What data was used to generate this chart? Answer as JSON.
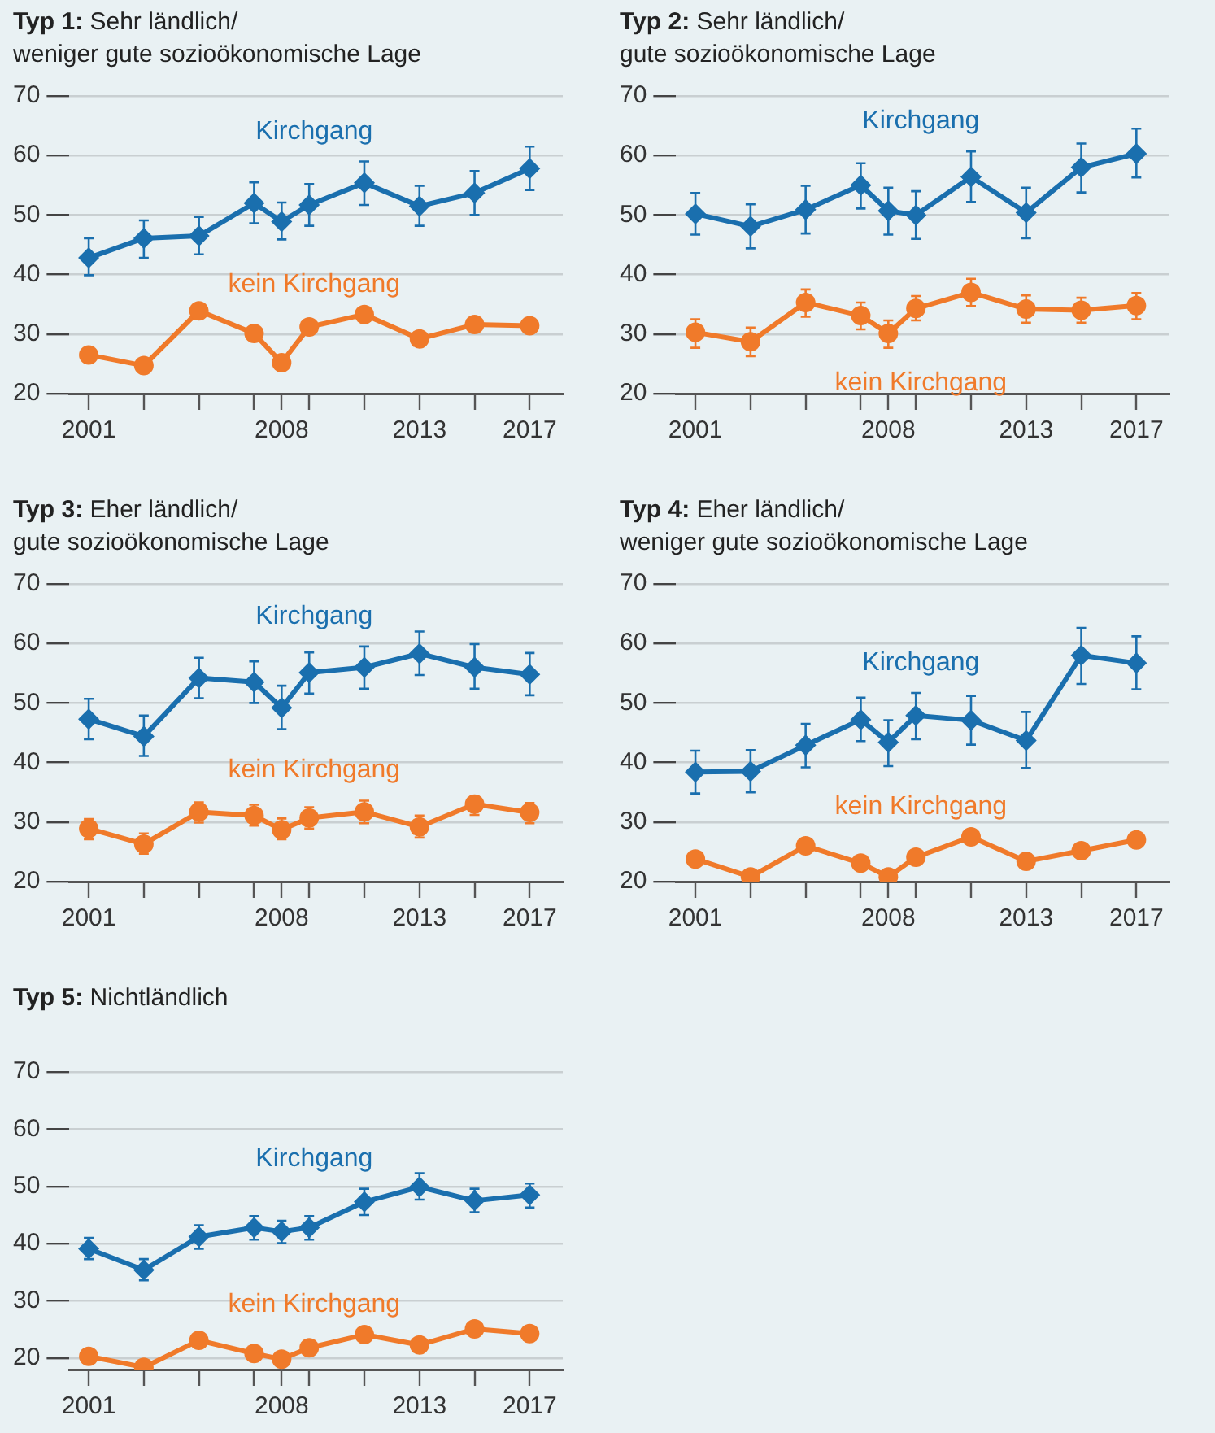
{
  "chart_data": [
    {
      "type": "line",
      "title": "Typ 1: Sehr ländlich/\nweniger gute sozioökonomische Lage",
      "x": [
        2001,
        2003,
        2005,
        2007,
        2008,
        2009,
        2011,
        2013,
        2015,
        2017
      ],
      "xlim": [
        2000.3,
        2018.2
      ],
      "xticks": [
        2001,
        {
          "value": 2003,
          "label": null
        },
        {
          "value": 2005,
          "label": null
        },
        {
          "value": 2007,
          "label": null
        },
        2008,
        {
          "value": 2009,
          "label": null
        },
        {
          "value": 2011,
          "label": null
        },
        2013,
        {
          "value": 2015,
          "label": null
        },
        2017
      ],
      "ylim": [
        20,
        70
      ],
      "yticks": [
        20,
        30,
        40,
        50,
        60,
        70
      ],
      "grid": "y",
      "legend": false,
      "line_style": "solid",
      "series": [
        {
          "name": "Kirchgang",
          "color": "#1a6fae",
          "marker": "diamond",
          "values": [
            42.8,
            46.1,
            46.5,
            52.0,
            48.9,
            51.7,
            55.4,
            51.5,
            53.7,
            57.8
          ],
          "errors": [
            [
              39.9,
              46.1
            ],
            [
              42.8,
              49.1
            ],
            [
              43.4,
              49.7
            ],
            [
              48.6,
              55.5
            ],
            [
              45.9,
              52.1
            ],
            [
              48.2,
              55.2
            ],
            [
              51.7,
              59.0
            ],
            [
              48.2,
              54.9
            ],
            [
              50.0,
              57.4
            ],
            [
              54.2,
              61.5
            ]
          ]
        },
        {
          "name": "kein Kirchgang",
          "color": "#f07a2a",
          "marker": "circle",
          "values": [
            26.5,
            24.7,
            33.9,
            30.1,
            25.2,
            31.2,
            33.3,
            29.2,
            31.6,
            31.4
          ]
        }
      ]
    },
    {
      "type": "line",
      "title": "Typ 2: Sehr ländlich/\ngute sozioökonomische Lage",
      "x": [
        2001,
        2003,
        2005,
        2007,
        2008,
        2009,
        2011,
        2013,
        2015,
        2017
      ],
      "xlim": [
        2000.3,
        2018.2
      ],
      "xticks": [
        2001,
        {
          "value": 2003,
          "label": null
        },
        {
          "value": 2005,
          "label": null
        },
        {
          "value": 2007,
          "label": null
        },
        2008,
        {
          "value": 2009,
          "label": null
        },
        {
          "value": 2011,
          "label": null
        },
        2013,
        {
          "value": 2015,
          "label": null
        },
        2017
      ],
      "ylim": [
        20,
        70
      ],
      "yticks": [
        20,
        30,
        40,
        50,
        60,
        70
      ],
      "grid": "y",
      "legend": false,
      "line_style": "solid",
      "series": [
        {
          "name": "Kirchgang",
          "color": "#1a6fae",
          "marker": "diamond",
          "values": [
            50.2,
            48.1,
            50.9,
            55.0,
            50.7,
            50.0,
            56.4,
            50.4,
            58.0,
            60.3
          ],
          "errors": [
            [
              46.7,
              53.7
            ],
            [
              44.4,
              51.8
            ],
            [
              46.9,
              54.9
            ],
            [
              51.1,
              58.7
            ],
            [
              46.7,
              54.6
            ],
            [
              46.0,
              54.0
            ],
            [
              52.2,
              60.7
            ],
            [
              46.1,
              54.6
            ],
            [
              53.8,
              62.0
            ],
            [
              56.3,
              64.5
            ]
          ]
        },
        {
          "name": "kein Kirchgang",
          "color": "#f07a2a",
          "marker": "circle",
          "values": [
            30.3,
            28.7,
            35.3,
            33.1,
            30.1,
            34.3,
            37.0,
            34.2,
            34.0,
            34.8
          ],
          "errors": [
            [
              27.7,
              32.5
            ],
            [
              26.3,
              31.1
            ],
            [
              32.9,
              37.5
            ],
            [
              30.8,
              35.3
            ],
            [
              27.7,
              32.3
            ],
            [
              32.3,
              36.4
            ],
            [
              34.7,
              39.3
            ],
            [
              31.9,
              36.5
            ],
            [
              31.9,
              36.1
            ],
            [
              32.5,
              36.9
            ]
          ]
        }
      ]
    },
    {
      "type": "line",
      "title": "Typ 3: Eher ländlich/\ngute sozioökonomische Lage",
      "x": [
        2001,
        2003,
        2005,
        2007,
        2008,
        2009,
        2011,
        2013,
        2015,
        2017
      ],
      "xlim": [
        2000.3,
        2018.2
      ],
      "xticks": [
        2001,
        {
          "value": 2003,
          "label": null
        },
        {
          "value": 2005,
          "label": null
        },
        {
          "value": 2007,
          "label": null
        },
        2008,
        {
          "value": 2009,
          "label": null
        },
        {
          "value": 2011,
          "label": null
        },
        2013,
        {
          "value": 2015,
          "label": null
        },
        2017
      ],
      "ylim": [
        20,
        70
      ],
      "yticks": [
        20,
        30,
        40,
        50,
        60,
        70
      ],
      "grid": "y",
      "legend": false,
      "line_style": "solid",
      "series": [
        {
          "name": "Kirchgang",
          "color": "#1a6fae",
          "marker": "diamond",
          "values": [
            47.3,
            44.4,
            54.2,
            53.5,
            49.2,
            55.1,
            56.0,
            58.3,
            56.0,
            54.8
          ],
          "errors": [
            [
              43.9,
              50.7
            ],
            [
              41.1,
              47.9
            ],
            [
              50.8,
              57.6
            ],
            [
              50.0,
              57.0
            ],
            [
              45.6,
              52.9
            ],
            [
              51.6,
              58.5
            ],
            [
              52.4,
              59.5
            ],
            [
              54.7,
              62.0
            ],
            [
              52.4,
              59.9
            ],
            [
              51.3,
              58.4
            ]
          ]
        },
        {
          "name": "kein Kirchgang",
          "color": "#f07a2a",
          "marker": "circle",
          "values": [
            28.9,
            26.3,
            31.7,
            31.1,
            28.7,
            30.7,
            31.7,
            29.2,
            33.0,
            31.6
          ],
          "errors": [
            [
              27.1,
              30.5
            ],
            [
              24.7,
              28.1
            ],
            [
              29.9,
              33.3
            ],
            [
              29.4,
              32.9
            ],
            [
              27.1,
              30.6
            ],
            [
              28.9,
              32.5
            ],
            [
              29.8,
              33.6
            ],
            [
              27.4,
              31.1
            ],
            [
              31.2,
              34.4
            ],
            [
              29.8,
              33.2
            ]
          ]
        }
      ]
    },
    {
      "type": "line",
      "title": "Typ 4: Eher ländlich/\nweniger gute sozioökonomische Lage",
      "x": [
        2001,
        2003,
        2005,
        2007,
        2008,
        2009,
        2011,
        2013,
        2015,
        2017
      ],
      "xlim": [
        2000.3,
        2018.2
      ],
      "xticks": [
        2001,
        {
          "value": 2003,
          "label": null
        },
        {
          "value": 2005,
          "label": null
        },
        {
          "value": 2007,
          "label": null
        },
        2008,
        {
          "value": 2009,
          "label": null
        },
        {
          "value": 2011,
          "label": null
        },
        2013,
        {
          "value": 2015,
          "label": null
        },
        2017
      ],
      "ylim": [
        20,
        70
      ],
      "yticks": [
        20,
        30,
        40,
        50,
        60,
        70
      ],
      "grid": "y",
      "legend": false,
      "line_style": "solid",
      "series": [
        {
          "name": "Kirchgang",
          "color": "#1a6fae",
          "marker": "diamond",
          "values": [
            38.4,
            38.5,
            42.9,
            47.2,
            43.4,
            47.9,
            47.1,
            43.7,
            58.0,
            56.7
          ],
          "errors": [
            [
              34.8,
              42.0
            ],
            [
              35.0,
              42.1
            ],
            [
              39.2,
              46.5
            ],
            [
              43.6,
              50.9
            ],
            [
              39.4,
              47.1
            ],
            [
              43.9,
              51.7
            ],
            [
              43.0,
              51.2
            ],
            [
              39.1,
              48.5
            ],
            [
              53.2,
              62.6
            ],
            [
              52.3,
              61.2
            ]
          ]
        },
        {
          "name": "kein Kirchgang",
          "color": "#f07a2a",
          "marker": "circle",
          "values": [
            23.8,
            20.8,
            26.0,
            23.1,
            20.8,
            24.1,
            27.5,
            23.4,
            25.2,
            27.0
          ]
        }
      ]
    },
    {
      "type": "line",
      "title": "Typ 5: Nichtländlich",
      "x": [
        2001,
        2003,
        2005,
        2007,
        2008,
        2009,
        2011,
        2013,
        2015,
        2017
      ],
      "xlim": [
        2000.3,
        2018.2
      ],
      "xticks": [
        2001,
        {
          "value": 2003,
          "label": null
        },
        {
          "value": 2005,
          "label": null
        },
        {
          "value": 2007,
          "label": null
        },
        2008,
        {
          "value": 2009,
          "label": null
        },
        {
          "value": 2011,
          "label": null
        },
        2013,
        {
          "value": 2015,
          "label": null
        },
        2017
      ],
      "ylim": [
        18,
        70
      ],
      "yticks": [
        20,
        30,
        40,
        50,
        60,
        70
      ],
      "grid": "y",
      "legend": false,
      "line_style": "solid",
      "series": [
        {
          "name": "Kirchgang",
          "color": "#1a6fae",
          "marker": "diamond",
          "values": [
            39.1,
            35.4,
            41.2,
            42.8,
            42.1,
            42.8,
            47.3,
            49.9,
            47.5,
            48.5
          ],
          "errors": [
            [
              37.3,
              41.0
            ],
            [
              33.6,
              37.3
            ],
            [
              39.1,
              43.2
            ],
            [
              40.7,
              44.8
            ],
            [
              40.1,
              44.0
            ],
            [
              40.7,
              44.8
            ],
            [
              45.0,
              49.6
            ],
            [
              47.7,
              52.3
            ],
            [
              45.5,
              49.6
            ],
            [
              46.3,
              50.5
            ]
          ]
        },
        {
          "name": "kein Kirchgang",
          "color": "#f07a2a",
          "marker": "circle",
          "values": [
            20.3,
            18.4,
            23.1,
            20.8,
            19.8,
            21.8,
            24.1,
            22.3,
            25.1,
            24.3
          ]
        }
      ]
    }
  ]
}
